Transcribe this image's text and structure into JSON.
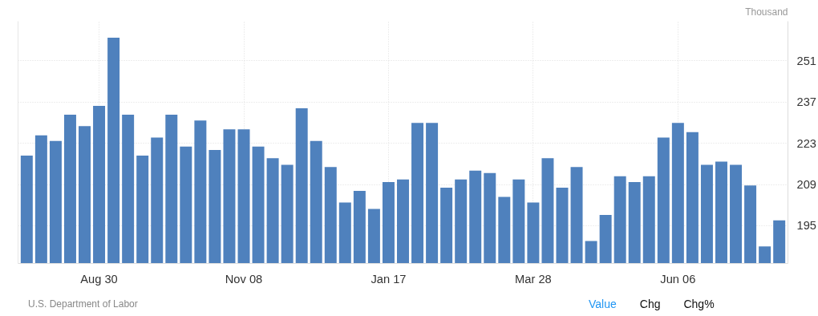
{
  "chart_data": {
    "type": "bar",
    "ylabel": "Thousand",
    "categories": [
      null,
      null,
      null,
      null,
      null,
      "Aug 30",
      null,
      null,
      null,
      null,
      null,
      null,
      null,
      null,
      null,
      "Nov 08",
      null,
      null,
      null,
      null,
      null,
      null,
      null,
      null,
      null,
      "Jan 17",
      null,
      null,
      null,
      null,
      null,
      null,
      null,
      null,
      null,
      "Mar 28",
      null,
      null,
      null,
      null,
      null,
      null,
      null,
      null,
      null,
      "Jun 06",
      null,
      null,
      null,
      null,
      null,
      null,
      null
    ],
    "values": [
      218.8,
      225.7,
      223.8,
      232.7,
      228.8,
      235.7,
      258.8,
      232.7,
      218.8,
      224.9,
      232.7,
      221.9,
      230.7,
      220.7,
      227.7,
      227.7,
      221.9,
      217.9,
      215.7,
      234.9,
      223.8,
      214.9,
      202.9,
      206.8,
      200.7,
      209.8,
      210.7,
      229.9,
      229.9,
      207.9,
      210.7,
      213.7,
      212.9,
      204.8,
      210.7,
      202.9,
      217.9,
      207.9,
      214.9,
      189.8,
      198.7,
      211.8,
      209.8,
      211.8,
      224.9,
      229.9,
      226.8,
      215.7,
      216.8,
      215.7,
      208.7,
      188.0,
      196.8
    ],
    "color": "#4f81bd",
    "ylim": [
      182.2,
      264.4
    ],
    "yticks": [
      195,
      209,
      223,
      237,
      251
    ],
    "grid": true,
    "annotations": [
      "U.S. Department of Labor",
      "Value",
      "Chg",
      "Chg%"
    ]
  }
}
